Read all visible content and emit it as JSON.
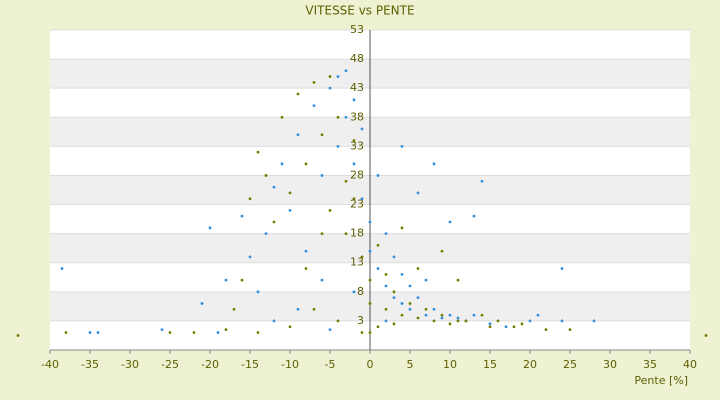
{
  "chart_data": {
    "type": "scatter",
    "title": "VITESSE vs PENTE",
    "x_label": "Pente [%]",
    "xlim": [
      -40,
      40
    ],
    "xticks": [
      -40,
      -35,
      -30,
      -25,
      -20,
      -15,
      -10,
      -5,
      0,
      5,
      10,
      15,
      20,
      25,
      30,
      35,
      40
    ],
    "ylim": [
      -2,
      53
    ],
    "yticks": [
      3,
      8,
      13,
      18,
      23,
      28,
      33,
      38,
      43,
      48,
      53
    ],
    "grid": true,
    "series": [
      {
        "color": "#2f8fe0",
        "x": [
          -38.5,
          -34,
          -35,
          -26,
          -21,
          -20,
          -18,
          -16,
          -15,
          -14,
          -13,
          -12,
          -11,
          -10,
          -9,
          -8,
          -7,
          -6,
          -5,
          -4,
          -4,
          -3,
          -3,
          -2,
          -2,
          -1,
          -1,
          0,
          0,
          1,
          1,
          2,
          2,
          3,
          3,
          4,
          4,
          5,
          5,
          6,
          7,
          7,
          8,
          9,
          10,
          11,
          12,
          13,
          14,
          13,
          15,
          17,
          20,
          21,
          24,
          24,
          28,
          6,
          8,
          10,
          4,
          -6,
          -9,
          -12,
          -2,
          2,
          -19,
          -5
        ],
        "values": [
          12,
          1,
          1,
          1.5,
          6,
          19,
          10,
          21,
          14,
          8,
          18,
          26,
          30,
          22,
          35,
          15,
          40,
          28,
          43,
          45,
          33,
          46,
          38,
          41,
          30,
          36,
          24,
          20,
          15,
          28,
          12,
          18,
          9,
          14,
          7,
          11,
          6,
          9,
          5,
          7,
          4,
          10,
          5,
          3.5,
          4,
          3.5,
          3,
          4,
          27,
          21,
          2.5,
          2,
          3,
          4,
          12,
          3,
          3,
          25,
          30,
          20,
          33,
          10,
          5,
          3,
          8,
          3,
          1,
          1.5
        ]
      },
      {
        "color": "#7a7a00",
        "x": [
          -38,
          -25,
          -22,
          -18,
          -17,
          -16,
          -15,
          -14,
          -13,
          -12,
          -11,
          -10,
          -9,
          -8,
          -7,
          -6,
          -5,
          -5,
          -4,
          -3,
          -3,
          -2,
          -1,
          0,
          0,
          1,
          2,
          2,
          3,
          4,
          5,
          6,
          7,
          8,
          9,
          10,
          11,
          12,
          14,
          15,
          16,
          18,
          22,
          25,
          19,
          -7,
          -10,
          -14,
          -4,
          -1,
          0,
          1,
          3,
          -8,
          -6,
          -2,
          4,
          6,
          9,
          11,
          -44,
          42
        ],
        "values": [
          1,
          1,
          1,
          1.5,
          5,
          10,
          24,
          32,
          28,
          20,
          38,
          25,
          42,
          30,
          44,
          35,
          45,
          22,
          38,
          27,
          18,
          34,
          14,
          10,
          6,
          16,
          11,
          5,
          8,
          4,
          6,
          3.5,
          5,
          3,
          4,
          2.5,
          3,
          3,
          4,
          2,
          3,
          2,
          1.5,
          1.5,
          2.5,
          5,
          2,
          1,
          3,
          1,
          1,
          2,
          2.5,
          12,
          18,
          24,
          19,
          12,
          15,
          10,
          0.5,
          0.5
        ]
      }
    ]
  }
}
